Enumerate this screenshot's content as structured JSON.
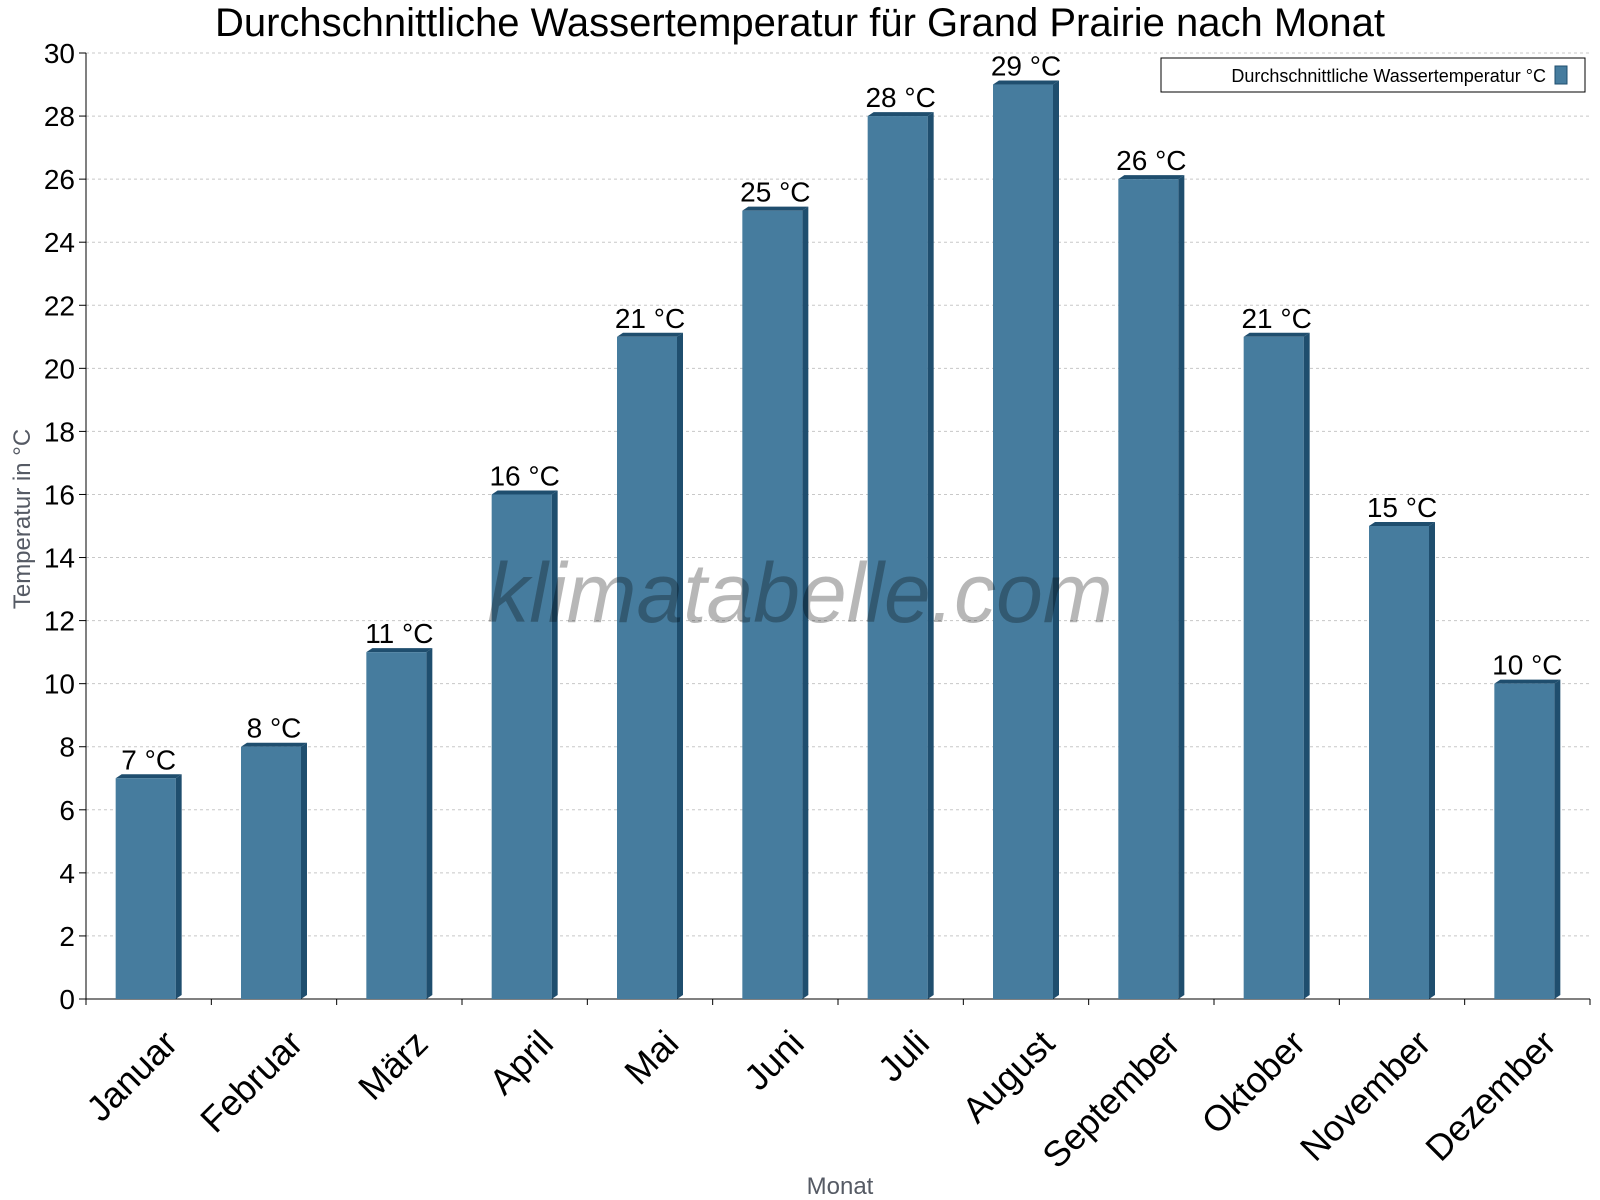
{
  "chart_data": {
    "type": "bar",
    "title": "Durchschnittliche Wassertemperatur für Grand Prairie nach Monat",
    "xlabel": "Monat",
    "ylabel": "Temperatur in °C",
    "ylim": [
      0,
      30
    ],
    "yticks": [
      0,
      2,
      4,
      6,
      8,
      10,
      12,
      14,
      16,
      18,
      20,
      22,
      24,
      26,
      28,
      30
    ],
    "grid": true,
    "legend_position": "top-right",
    "categories": [
      "Januar",
      "Februar",
      "März",
      "April",
      "Mai",
      "Juni",
      "Juli",
      "August",
      "September",
      "Oktober",
      "November",
      "Dezember"
    ],
    "series": [
      {
        "name": "Durchschnittliche Wassertemperatur °C",
        "values": [
          7,
          8,
          11,
          16,
          21,
          25,
          28,
          29,
          26,
          21,
          15,
          10
        ],
        "labels": [
          "7 °C",
          "8 °C",
          "11 °C",
          "16 °C",
          "21 °C",
          "25 °C",
          "28 °C",
          "29 °C",
          "26 °C",
          "21 °C",
          "15 °C",
          "10 °C"
        ],
        "color": "#467c9e",
        "shade_color": "#1f4e6e"
      }
    ],
    "watermark": "klimatabelle.com"
  }
}
